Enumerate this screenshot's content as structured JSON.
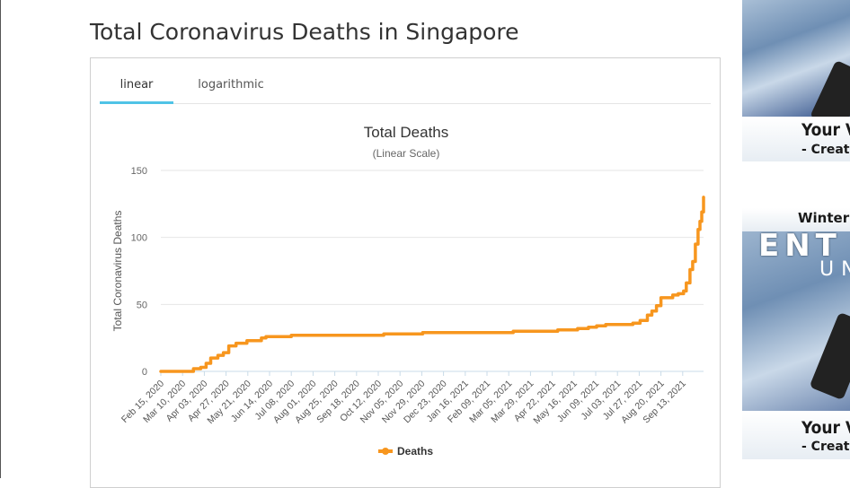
{
  "page": {
    "title": "Total Coronavirus Deaths in Singapore"
  },
  "tabs": [
    {
      "label": "linear",
      "active": true
    },
    {
      "label": "logarithmic",
      "active": false
    }
  ],
  "colors": {
    "series": "#f7961e",
    "accent_tab": "#4fc3e6",
    "grid": "#e6e6e6",
    "axis_base": "#c9dbe8"
  },
  "ads": {
    "top": {
      "line1": "Your V",
      "line2": "- Create Y"
    },
    "bottom": {
      "headline": "Winter h",
      "brand": "ENT",
      "brand_sub": "UN",
      "line1": "Your V",
      "line2": "- Create Y"
    }
  },
  "chart_data": {
    "type": "line",
    "title": "Total Deaths",
    "subtitle": "(Linear Scale)",
    "ylabel": "Total Coronavirus Deaths",
    "xlabel": "",
    "ylim": [
      0,
      150
    ],
    "yticks": [
      0,
      50,
      100,
      150
    ],
    "x_start": "Feb 15, 2020",
    "x_end": "Oct 06, 2021",
    "xtick_labels": [
      "Feb 15, 2020",
      "Mar 10, 2020",
      "Apr 03, 2020",
      "Apr 27, 2020",
      "May 21, 2020",
      "Jun 14, 2020",
      "Jul 08, 2020",
      "Aug 01, 2020",
      "Aug 25, 2020",
      "Sep 18, 2020",
      "Oct 12, 2020",
      "Nov 05, 2020",
      "Nov 29, 2020",
      "Dec 23, 2020",
      "Jan 16, 2021",
      "Feb 09, 2021",
      "Mar 05, 2021",
      "Mar 29, 2021",
      "Apr 22, 2021",
      "May 16, 2021",
      "Jun 09, 2021",
      "Jul 03, 2021",
      "Jul 27, 2021",
      "Aug 20, 2021",
      "Sep 13, 2021"
    ],
    "legend": {
      "position": "bottom"
    },
    "grid": true,
    "series": [
      {
        "name": "Deaths",
        "color": "#f7961e",
        "points": [
          [
            "Feb 15, 2020",
            0
          ],
          [
            "Mar 20, 2020",
            0
          ],
          [
            "Mar 22, 2020",
            2
          ],
          [
            "Mar 30, 2020",
            3
          ],
          [
            "Apr 05, 2020",
            6
          ],
          [
            "Apr 10, 2020",
            10
          ],
          [
            "Apr 18, 2020",
            12
          ],
          [
            "Apr 24, 2020",
            14
          ],
          [
            "Apr 30, 2020",
            19
          ],
          [
            "May 08, 2020",
            21
          ],
          [
            "May 20, 2020",
            23
          ],
          [
            "Jun 05, 2020",
            25
          ],
          [
            "Jun 10, 2020",
            26
          ],
          [
            "Jul 01, 2020",
            26
          ],
          [
            "Jul 08, 2020",
            27
          ],
          [
            "Oct 12, 2020",
            27
          ],
          [
            "Oct 18, 2020",
            28
          ],
          [
            "Nov 25, 2020",
            28
          ],
          [
            "Nov 30, 2020",
            29
          ],
          [
            "Mar 05, 2021",
            29
          ],
          [
            "Mar 10, 2021",
            30
          ],
          [
            "Apr 22, 2021",
            30
          ],
          [
            "Apr 28, 2021",
            31
          ],
          [
            "May 10, 2021",
            31
          ],
          [
            "May 20, 2021",
            32
          ],
          [
            "Jun 01, 2021",
            33
          ],
          [
            "Jun 10, 2021",
            34
          ],
          [
            "Jun 20, 2021",
            35
          ],
          [
            "Jul 20, 2021",
            36
          ],
          [
            "Jul 28, 2021",
            38
          ],
          [
            "Aug 05, 2021",
            42
          ],
          [
            "Aug 10, 2021",
            45
          ],
          [
            "Aug 15, 2021",
            49
          ],
          [
            "Aug 20, 2021",
            55
          ],
          [
            "Aug 29, 2021",
            55
          ],
          [
            "Sep 02, 2021",
            57
          ],
          [
            "Sep 08, 2021",
            58
          ],
          [
            "Sep 14, 2021",
            60
          ],
          [
            "Sep 17, 2021",
            66
          ],
          [
            "Sep 21, 2021",
            76
          ],
          [
            "Sep 24, 2021",
            82
          ],
          [
            "Sep 27, 2021",
            95
          ],
          [
            "Sep 30, 2021",
            106
          ],
          [
            "Oct 02, 2021",
            112
          ],
          [
            "Oct 04, 2021",
            119
          ],
          [
            "Oct 06, 2021",
            130
          ]
        ]
      }
    ]
  }
}
